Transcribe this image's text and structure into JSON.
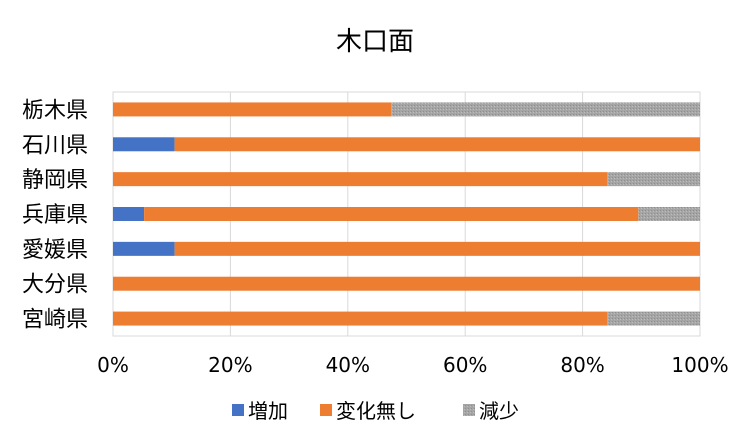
{
  "chart_data": {
    "type": "bar",
    "orientation": "horizontal",
    "stacking": "percent",
    "title": "木口面",
    "xlabel": "",
    "ylabel": "",
    "categories": [
      "栃木県",
      "石川県",
      "静岡県",
      "兵庫県",
      "愛媛県",
      "大分県",
      "宮崎県"
    ],
    "series": [
      {
        "name": "増加",
        "color": "#4472C4",
        "values": [
          0,
          10.5,
          0,
          5.3,
          10.5,
          0,
          0
        ]
      },
      {
        "name": "変化無し",
        "color": "#ED7D31",
        "values": [
          47.4,
          89.5,
          84.2,
          84.2,
          89.5,
          100,
          84.2
        ]
      },
      {
        "name": "減少",
        "color": "#A5A5A5",
        "values": [
          52.6,
          0,
          15.8,
          10.5,
          0,
          0,
          15.8
        ]
      }
    ],
    "xlim": [
      0,
      100
    ],
    "ticks": [
      "0%",
      "20%",
      "40%",
      "60%",
      "80%",
      "100%"
    ],
    "tick_values": [
      0,
      20,
      40,
      60,
      80,
      100
    ],
    "grid": true,
    "legend_position": "bottom"
  }
}
